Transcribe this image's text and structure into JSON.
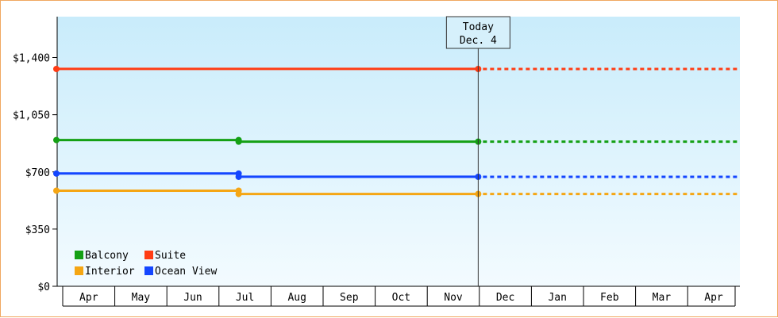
{
  "chart_data": {
    "type": "line",
    "x_labels": [
      "Apr",
      "May",
      "Jun",
      "Jul",
      "Aug",
      "Sep",
      "Oct",
      "Nov",
      "Dec",
      "Jan",
      "Feb",
      "Mar",
      "Apr"
    ],
    "y_ticks": [
      "$0",
      "$350",
      "$700",
      "$1,050",
      "$1,400"
    ],
    "y_tick_values": [
      0,
      350,
      700,
      1050,
      1400
    ],
    "ylim": [
      0,
      1650
    ],
    "grid": false,
    "today": {
      "line1": "Today",
      "line2": "Dec. 4",
      "month_index": 8.1
    },
    "legend_position": "bottom-left",
    "series": [
      {
        "name": "Suite",
        "color": "#ff3c14",
        "points": [
          [
            0,
            1330
          ],
          [
            8.1,
            1330
          ]
        ],
        "projection": 1330
      },
      {
        "name": "Balcony",
        "color": "#14a014",
        "points": [
          [
            0,
            895
          ],
          [
            3.5,
            895
          ],
          [
            3.5,
            885
          ],
          [
            8.1,
            885
          ]
        ],
        "projection": 885
      },
      {
        "name": "Ocean View",
        "color": "#1446ff",
        "points": [
          [
            0,
            690
          ],
          [
            3.5,
            690
          ],
          [
            3.5,
            670
          ],
          [
            8.1,
            670
          ]
        ],
        "projection": 670
      },
      {
        "name": "Interior",
        "color": "#f5a614",
        "points": [
          [
            0,
            585
          ],
          [
            3.5,
            585
          ],
          [
            3.5,
            565
          ],
          [
            8.1,
            565
          ]
        ],
        "projection": 565
      }
    ],
    "legend_rows": [
      [
        "Balcony",
        "Suite"
      ],
      [
        "Interior",
        "Ocean View"
      ]
    ]
  }
}
